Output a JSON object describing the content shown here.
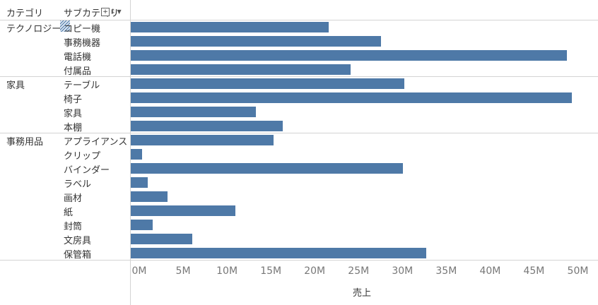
{
  "header": {
    "category_label": "カテゴリ",
    "subcategory_label": "サブカテゴリ",
    "sort_icon": "sort-icon",
    "menu_icon": "dropdown-icon"
  },
  "colors": {
    "bar": "#4e79a7",
    "grid": "#d4d4d4"
  },
  "chart_data": {
    "type": "bar",
    "orientation": "horizontal",
    "xlabel": "売上",
    "xlim": [
      0,
      53000000
    ],
    "x_ticks": [
      "0M",
      "5M",
      "10M",
      "15M",
      "20M",
      "25M",
      "30M",
      "35M",
      "40M",
      "45M",
      "50M"
    ],
    "x_tick_values": [
      0,
      5000000,
      10000000,
      15000000,
      20000000,
      25000000,
      30000000,
      35000000,
      40000000,
      45000000,
      50000000
    ],
    "groups": [
      {
        "category": "テクノロジー",
        "items": [
          {
            "name": "コピー機",
            "value": 22600000
          },
          {
            "name": "事務機器",
            "value": 28500000
          },
          {
            "name": "電話機",
            "value": 49700000
          },
          {
            "name": "付属品",
            "value": 25100000
          }
        ]
      },
      {
        "category": "家具",
        "items": [
          {
            "name": "テーブル",
            "value": 31200000
          },
          {
            "name": "椅子",
            "value": 50300000
          },
          {
            "name": "家具",
            "value": 14300000
          },
          {
            "name": "本棚",
            "value": 17300000
          }
        ]
      },
      {
        "category": "事務用品",
        "items": [
          {
            "name": "アプライアンス",
            "value": 16300000
          },
          {
            "name": "クリップ",
            "value": 1300000
          },
          {
            "name": "バインダー",
            "value": 31000000
          },
          {
            "name": "ラベル",
            "value": 1900000
          },
          {
            "name": "画材",
            "value": 4200000
          },
          {
            "name": "紙",
            "value": 11900000
          },
          {
            "name": "封筒",
            "value": 2500000
          },
          {
            "name": "文房具",
            "value": 7000000
          },
          {
            "name": "保管箱",
            "value": 33700000
          }
        ]
      }
    ]
  }
}
